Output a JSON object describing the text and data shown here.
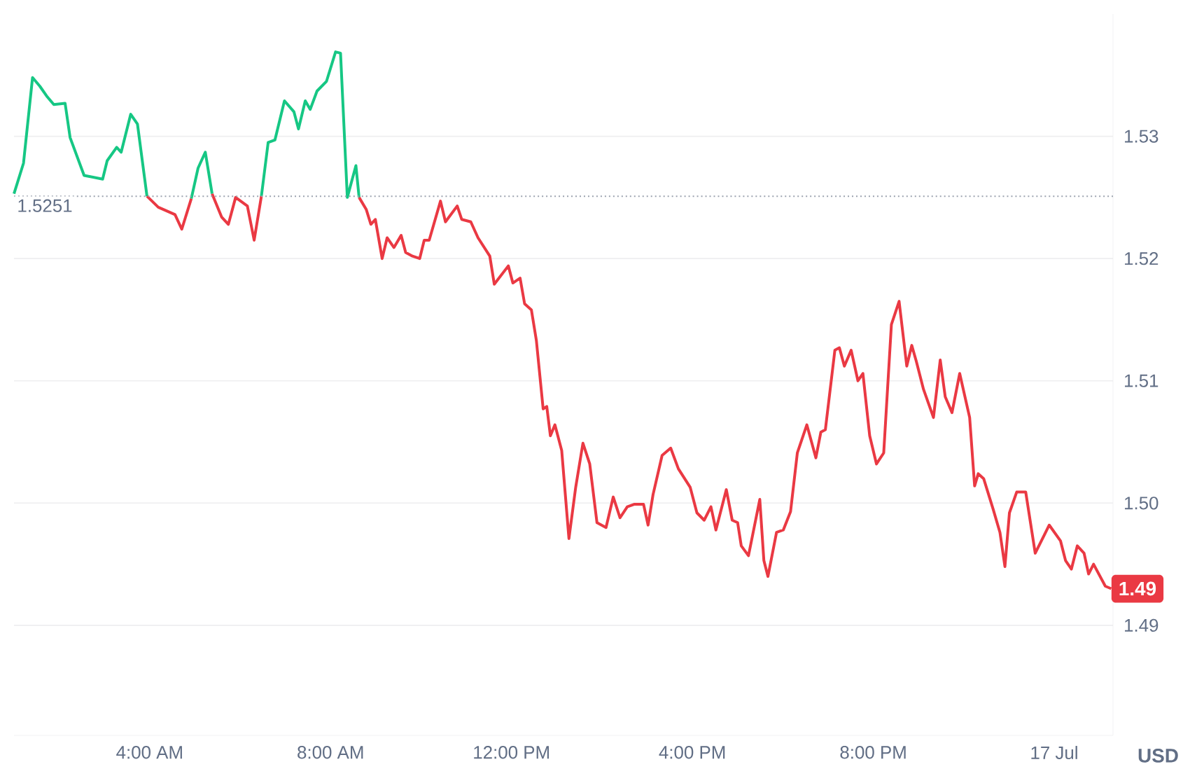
{
  "chart_data": {
    "type": "line",
    "ylabel": "USD",
    "xlim": [
      1.0,
      25.3
    ],
    "ylim": [
      1.481,
      1.54
    ],
    "xticks": [
      {
        "value": 4,
        "label": "4:00 AM"
      },
      {
        "value": 8,
        "label": "8:00 AM"
      },
      {
        "value": 12,
        "label": "12:00 PM"
      },
      {
        "value": 16,
        "label": "4:00 PM"
      },
      {
        "value": 20,
        "label": "8:00 PM"
      },
      {
        "value": 24,
        "label": "17 Jul"
      }
    ],
    "yticks": [
      1.49,
      {
        "value": 1.5,
        "label": "1.50"
      },
      1.51,
      1.52,
      1.53
    ],
    "grid": "y",
    "ref_lines": [
      {
        "axis": "y",
        "value": 1.5251,
        "label": "1.5251",
        "line_style": "dotted",
        "color": "#9ca3af"
      }
    ],
    "annotations": [
      {
        "text": "1.49",
        "x": 25.26,
        "y": 1.493
      }
    ],
    "series": [
      {
        "color": "#16c784",
        "x": [
          1.0,
          1.21,
          1.41,
          1.57,
          1.72,
          1.88,
          2.13,
          2.24,
          2.55,
          2.96,
          3.06,
          3.27,
          3.37,
          3.58,
          3.73,
          3.94,
          4.19,
          4.56,
          4.71,
          4.92,
          5.07,
          5.23,
          5.38,
          5.59,
          5.74,
          5.9,
          6.16,
          6.31,
          6.47,
          6.62,
          6.77,
          6.98,
          7.19,
          7.29,
          7.44,
          7.55,
          7.7,
          7.91,
          8.11,
          8.22,
          8.37,
          8.56,
          8.63
        ],
        "values": [
          1.5253,
          1.5278,
          1.5348,
          1.5341,
          1.5333,
          1.5326,
          1.5327,
          1.5299,
          1.5268,
          1.5265,
          1.528,
          1.5291,
          1.5287,
          1.5318,
          1.531,
          1.5251,
          null,
          null,
          null,
          1.5249,
          1.5274,
          1.5287,
          1.5253,
          null,
          null,
          null,
          null,
          null,
          1.5251,
          1.5295,
          1.5297,
          1.5329,
          1.532,
          1.5306,
          1.5329,
          1.5322,
          1.5337,
          1.5345,
          1.5369,
          1.5368,
          1.525,
          1.5276,
          1.525
        ]
      },
      {
        "color": "#ea3943",
        "x": [
          3.94,
          4.19,
          4.56,
          4.71,
          4.92,
          5.07,
          5.23,
          5.38,
          5.59,
          5.74,
          5.9,
          6.16,
          6.31,
          6.47,
          6.62,
          6.77,
          6.98,
          7.19,
          7.29,
          7.44,
          7.55,
          7.7,
          7.91,
          8.11,
          8.22,
          8.37,
          8.56,
          8.63,
          8.79,
          8.89,
          8.99,
          9.14,
          9.25,
          9.4,
          9.56,
          9.66,
          9.81,
          9.97,
          10.07,
          10.18,
          10.43,
          10.54,
          10.8,
          10.9,
          11.1,
          11.26,
          11.52,
          11.62,
          11.93,
          12.03,
          12.19,
          12.29,
          12.44,
          12.55,
          12.7,
          12.78,
          12.86,
          12.96,
          13.11,
          13.27,
          13.42,
          13.58,
          13.73,
          13.89,
          14.09,
          14.25,
          14.4,
          14.56,
          14.71,
          14.92,
          15.02,
          15.13,
          15.33,
          15.52,
          15.69,
          15.95,
          16.1,
          16.26,
          16.41,
          16.52,
          16.75,
          16.88,
          17.0,
          17.08,
          17.24,
          17.49,
          17.58,
          17.67,
          17.86,
          18.01,
          18.17,
          18.32,
          18.53,
          18.73,
          18.84,
          18.94,
          19.15,
          19.25,
          19.36,
          19.51,
          19.66,
          19.77,
          19.92,
          20.07,
          20.23,
          20.4,
          20.57,
          20.74,
          20.85,
          20.95,
          21.11,
          21.33,
          21.48,
          21.59,
          21.74,
          21.91,
          22.13,
          22.24,
          22.32,
          22.44,
          22.65,
          22.8,
          22.91,
          23.01,
          23.17,
          23.37,
          23.58,
          23.89,
          24.14,
          24.25,
          24.38,
          24.51,
          24.66,
          24.76,
          24.87,
          25.13,
          25.26
        ],
        "values": [
          1.5251,
          1.5242,
          1.5236,
          1.5224,
          1.5249,
          null,
          null,
          1.5253,
          1.5234,
          1.5228,
          1.525,
          1.5243,
          1.5215,
          1.5251,
          null,
          null,
          null,
          null,
          null,
          null,
          null,
          null,
          null,
          null,
          null,
          null,
          null,
          1.525,
          1.524,
          1.5228,
          1.5232,
          1.52,
          1.5217,
          1.5209,
          1.5219,
          1.5205,
          1.5202,
          1.52,
          1.5215,
          1.5215,
          1.5247,
          1.523,
          1.5243,
          1.5232,
          1.523,
          1.5217,
          1.5202,
          1.5179,
          1.5194,
          1.518,
          1.5184,
          1.5163,
          1.5158,
          1.5133,
          1.5077,
          1.5079,
          1.5055,
          1.5064,
          1.5043,
          1.4971,
          1.5013,
          1.5049,
          1.5032,
          1.4984,
          1.498,
          1.5005,
          1.4988,
          1.4997,
          1.4999,
          1.4999,
          1.4982,
          1.5007,
          1.5039,
          1.5045,
          1.5028,
          1.5013,
          1.4992,
          1.4986,
          1.4997,
          1.4978,
          1.5011,
          1.4986,
          1.4984,
          1.4965,
          1.4957,
          1.5003,
          1.4953,
          1.494,
          1.4976,
          1.4978,
          1.4993,
          1.5041,
          1.5064,
          1.5037,
          1.5058,
          1.506,
          1.5125,
          1.5127,
          1.5112,
          1.5125,
          1.51,
          1.5106,
          1.5055,
          1.5032,
          1.5041,
          1.5146,
          1.5165,
          1.5112,
          1.5129,
          1.5116,
          1.5093,
          1.507,
          1.5117,
          1.5087,
          1.5074,
          1.5106,
          1.507,
          1.5014,
          1.5024,
          1.502,
          1.4995,
          1.4976,
          1.4948,
          1.4992,
          1.5009,
          1.5009,
          1.4959,
          1.4982,
          1.4969,
          1.4953,
          1.4946,
          1.4965,
          1.4959,
          1.4942,
          1.495,
          1.4932,
          1.493
        ]
      }
    ]
  }
}
